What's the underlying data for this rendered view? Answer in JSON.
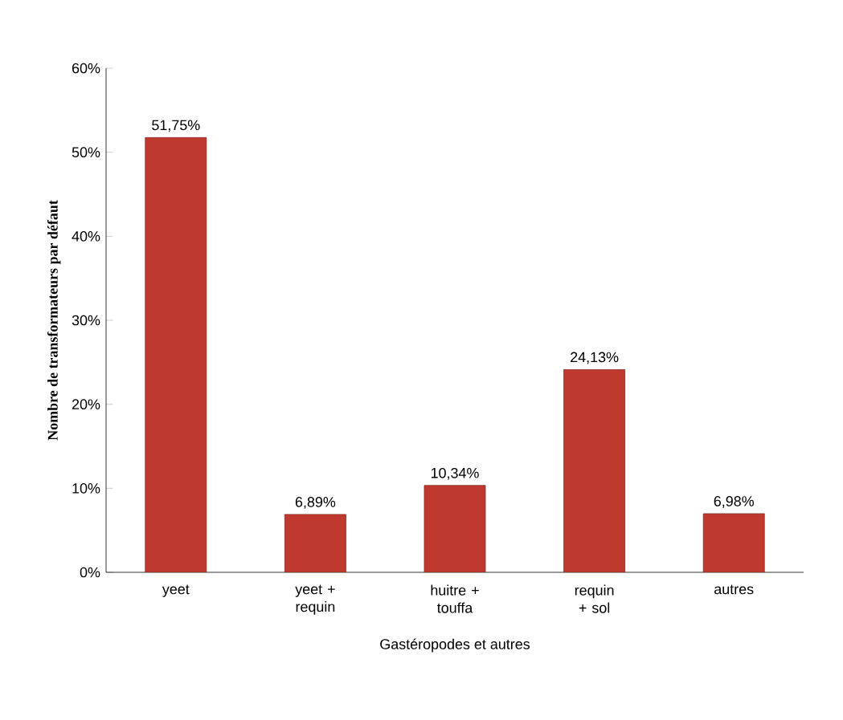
{
  "chart_data": {
    "type": "bar",
    "xlabel": "Gastéropodes et autres",
    "ylabel": "Nombre de transformateurs par défaut",
    "categories": [
      "yeet",
      "yeet + requin",
      "huitre + touffa",
      "requin + sol",
      "autres"
    ],
    "values": [
      51.75,
      6.89,
      10.34,
      24.13,
      6.98
    ],
    "value_labels": [
      "51,75%",
      "6,89%",
      "10,34%",
      "24,13%",
      "6,98%"
    ],
    "color": "#c0392f",
    "ylim": [
      0,
      60
    ],
    "yticks": [
      {
        "value": 0,
        "label": "0%"
      },
      {
        "value": 10,
        "label": "10%"
      },
      {
        "value": 20,
        "label": "20%"
      },
      {
        "value": 30,
        "label": "30%"
      },
      {
        "value": 40,
        "label": "40%"
      },
      {
        "value": 50,
        "label": "50%"
      },
      {
        "value": 60,
        "label": "60%"
      }
    ],
    "grid": false
  }
}
